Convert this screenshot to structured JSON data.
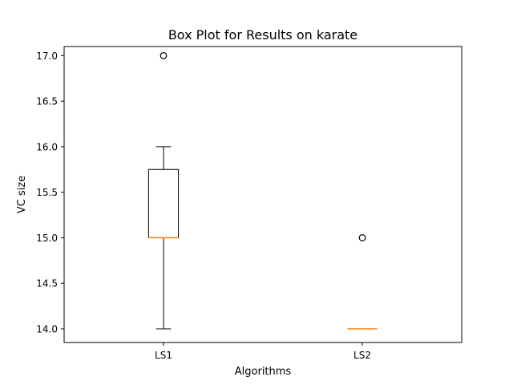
{
  "chart_data": {
    "type": "box",
    "title": "Box Plot for Results on karate",
    "xlabel": "Algorithms",
    "ylabel": "VC size",
    "ylim": [
      13.85,
      17.1
    ],
    "yticks": [
      "14.0",
      "14.5",
      "15.0",
      "15.5",
      "16.0",
      "16.5",
      "17.0"
    ],
    "grid": false,
    "colors": {
      "box": "#000000",
      "median": "#ff7f0e"
    },
    "series": [
      {
        "name": "LS1",
        "whisker_low": 14.0,
        "q1": 15.0,
        "median": 15.0,
        "q3": 15.75,
        "whisker_high": 16.0,
        "outliers": [
          17.0
        ]
      },
      {
        "name": "LS2",
        "whisker_low": 14.0,
        "q1": 14.0,
        "median": 14.0,
        "q3": 14.0,
        "whisker_high": 14.0,
        "outliers": [
          15.0
        ]
      }
    ]
  }
}
